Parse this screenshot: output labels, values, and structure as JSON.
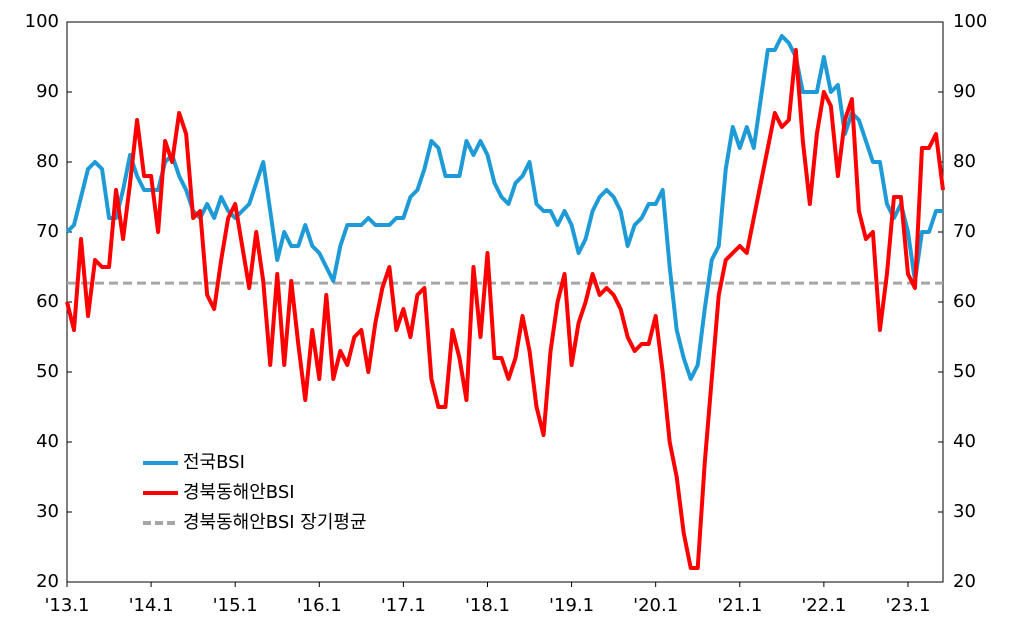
{
  "chart_data": {
    "type": "line",
    "categories": [
      "'13.1",
      null,
      null,
      null,
      null,
      null,
      null,
      null,
      null,
      null,
      null,
      null,
      "'14.1",
      null,
      null,
      null,
      null,
      null,
      null,
      null,
      null,
      null,
      null,
      null,
      "'15.1",
      null,
      null,
      null,
      null,
      null,
      null,
      null,
      null,
      null,
      null,
      null,
      "'16.1",
      null,
      null,
      null,
      null,
      null,
      null,
      null,
      null,
      null,
      null,
      null,
      "'17.1",
      null,
      null,
      null,
      null,
      null,
      null,
      null,
      null,
      null,
      null,
      null,
      "'18.1",
      null,
      null,
      null,
      null,
      null,
      null,
      null,
      null,
      null,
      null,
      null,
      "'19.1",
      null,
      null,
      null,
      null,
      null,
      null,
      null,
      null,
      null,
      null,
      null,
      "'20.1",
      null,
      null,
      null,
      null,
      null,
      null,
      null,
      null,
      null,
      null,
      null,
      "'21.1",
      null,
      null,
      null,
      null,
      null,
      null,
      null,
      null,
      null,
      null,
      null,
      "'22.1",
      null,
      null,
      null,
      null,
      null,
      null,
      null,
      null,
      null,
      null,
      null,
      "'23.1",
      null,
      null,
      null,
      null,
      null
    ],
    "series": [
      {
        "name": "전국BSI",
        "color": "#1e9bd7",
        "values": [
          70,
          71,
          75,
          79,
          80,
          79,
          72,
          72,
          76,
          81,
          78,
          76,
          76,
          76,
          80,
          81,
          78,
          76,
          73,
          72,
          74,
          72,
          75,
          73,
          72,
          73,
          74,
          77,
          80,
          73,
          66,
          70,
          68,
          68,
          71,
          68,
          67,
          65,
          63,
          68,
          71,
          71,
          71,
          72,
          71,
          71,
          71,
          72,
          72,
          75,
          76,
          79,
          83,
          82,
          78,
          78,
          78,
          83,
          81,
          83,
          81,
          77,
          75,
          74,
          77,
          78,
          80,
          74,
          73,
          73,
          71,
          73,
          71,
          67,
          69,
          73,
          75,
          76,
          75,
          73,
          68,
          71,
          72,
          74,
          74,
          76,
          65,
          56,
          52,
          49,
          51,
          59,
          66,
          68,
          79,
          85,
          82,
          85,
          82,
          89,
          96,
          96,
          98,
          97,
          95,
          90,
          90,
          90,
          95,
          90,
          91,
          84,
          87,
          86,
          83,
          80,
          80,
          74,
          72,
          74,
          70,
          63,
          70,
          70,
          73,
          73
        ]
      },
      {
        "name": "경북동해안BSI",
        "color": "#ff0000",
        "values": [
          60,
          56,
          69,
          58,
          66,
          65,
          65,
          76,
          69,
          77,
          86,
          78,
          78,
          70,
          83,
          80,
          87,
          84,
          72,
          73,
          61,
          59,
          66,
          72,
          74,
          68,
          62,
          70,
          63,
          51,
          64,
          51,
          63,
          54,
          46,
          56,
          49,
          61,
          49,
          53,
          51,
          55,
          56,
          50,
          57,
          62,
          65,
          56,
          59,
          55,
          61,
          62,
          49,
          45,
          45,
          56,
          52,
          46,
          65,
          55,
          67,
          52,
          52,
          49,
          52,
          58,
          53,
          45,
          41,
          53,
          60,
          64,
          51,
          57,
          60,
          64,
          61,
          62,
          61,
          59,
          55,
          53,
          54,
          54,
          58,
          50,
          40,
          35,
          27,
          22,
          22,
          37,
          49,
          61,
          66,
          67,
          68,
          67,
          72,
          77,
          82,
          87,
          85,
          86,
          96,
          83,
          74,
          84,
          90,
          88,
          78,
          86,
          89,
          73,
          69,
          70,
          56,
          64,
          75,
          75,
          64,
          62,
          82,
          82,
          84,
          76
        ]
      }
    ],
    "reference_line": {
      "name": "경북동해안BSI 장기평균",
      "value": 62.7,
      "color": "#a6a6a6"
    },
    "ylim": [
      20,
      100
    ],
    "yticks": [
      20,
      30,
      40,
      50,
      60,
      70,
      80,
      90,
      100
    ],
    "y2lim": [
      20,
      100
    ],
    "y2ticks": [
      20,
      30,
      40,
      50,
      60,
      70,
      80,
      90,
      100
    ],
    "legend": "lower left"
  }
}
